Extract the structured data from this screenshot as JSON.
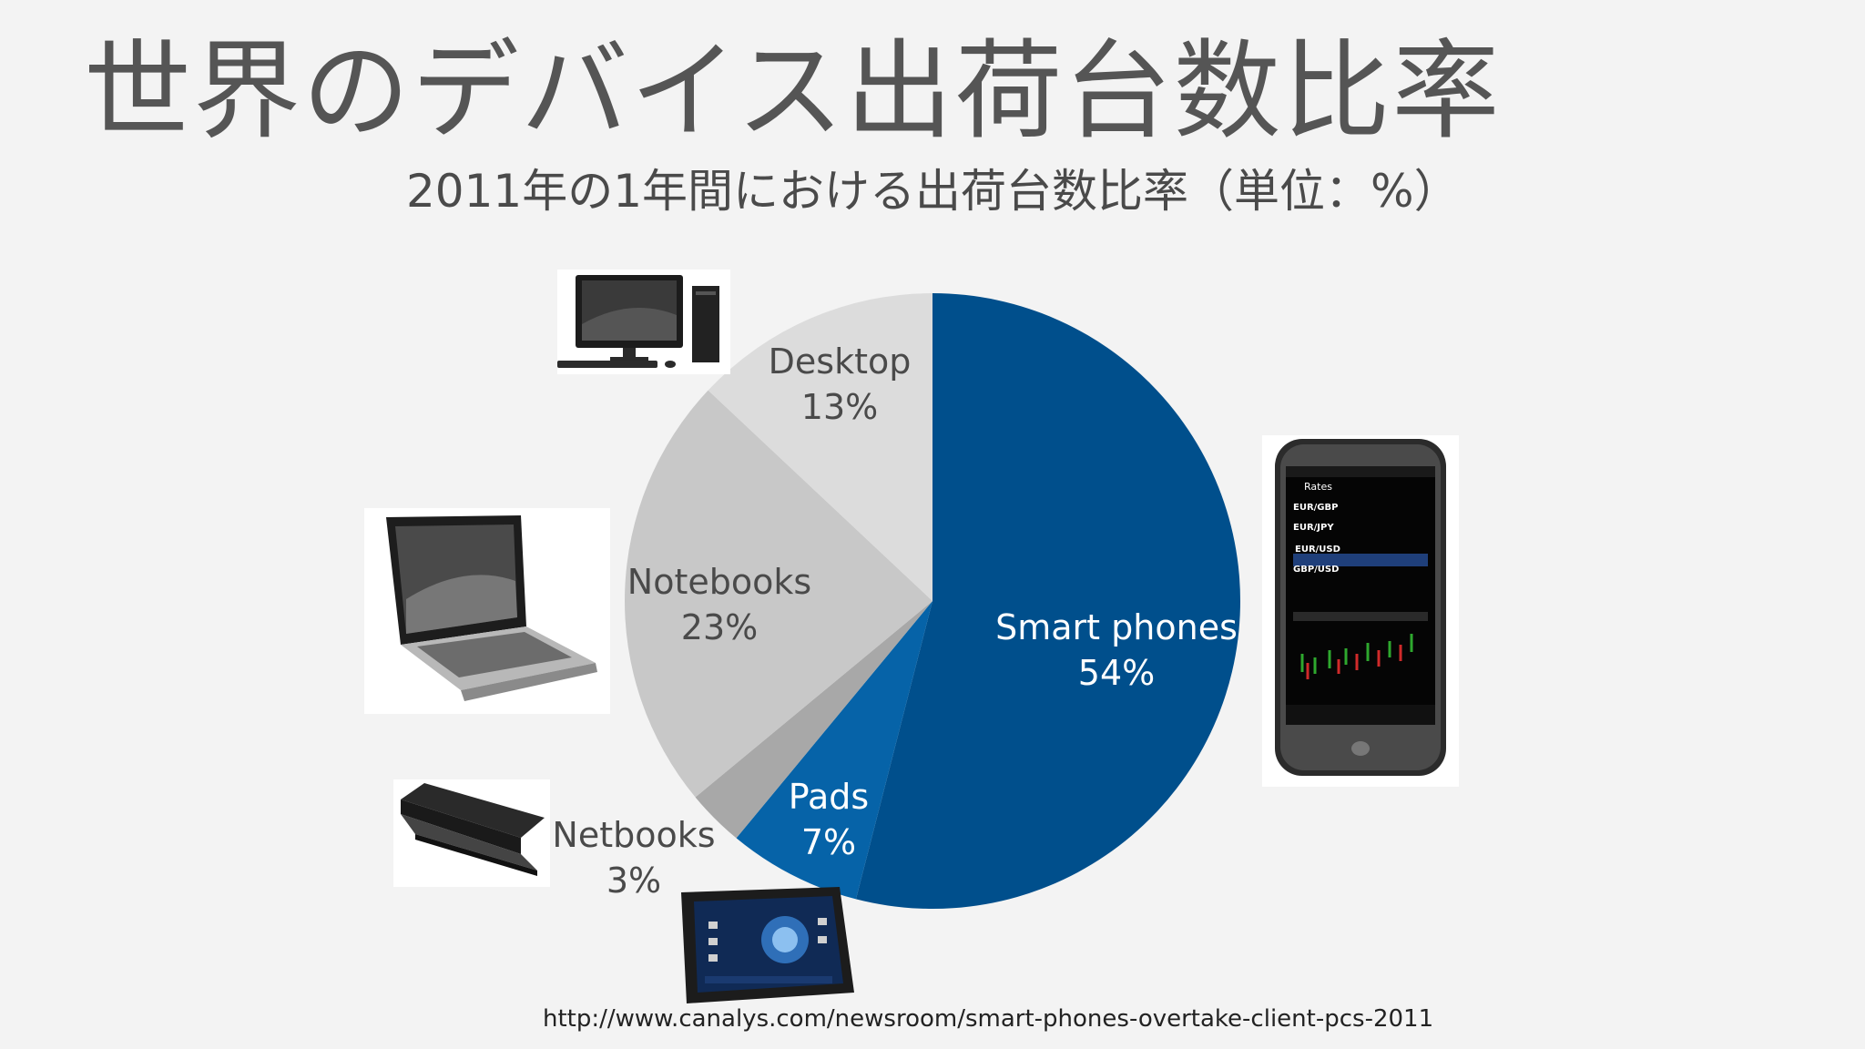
{
  "slide": {
    "title": "世界のデバイス出荷台数比率",
    "subtitle": "2011年の1年間における出荷台数比率（単位：%）",
    "source": "http://www.canalys.com/newsroom/smart-phones-overtake-client-pcs-2011"
  },
  "chart_data": {
    "type": "pie",
    "title": "2011年の1年間における出荷台数比率（単位：%）",
    "unit": "%",
    "categories": [
      "Smart phones",
      "Pads",
      "Netbooks",
      "Notebooks",
      "Desktop"
    ],
    "values": [
      54,
      7,
      3,
      23,
      13
    ],
    "labels": [
      "54%",
      "7%",
      "3%",
      "23%",
      "13%"
    ],
    "colors": [
      "#004f8c",
      "#0663a8",
      "#a8a8a8",
      "#c8c8c8",
      "#dcdcdc"
    ],
    "label_colors": [
      "#ffffff",
      "#ffffff",
      "#4a4a4a",
      "#4a4a4a",
      "#4a4a4a"
    ],
    "start": "12 o'clock",
    "direction": "clockwise"
  },
  "icons": {
    "desktop": "desktop-computer-icon",
    "notebook": "notebook-laptop-icon",
    "netbook": "netbook-icon",
    "tablet": "tablet-device-icon",
    "smartphone": "smartphone-device-icon"
  },
  "phone_screen": {
    "header": "Rates",
    "rows": [
      {
        "pair": "EUR/GBP"
      },
      {
        "pair": "EUR/JPY"
      },
      {
        "pair": "EUR/USD"
      },
      {
        "pair": "GBP/USD"
      }
    ]
  }
}
